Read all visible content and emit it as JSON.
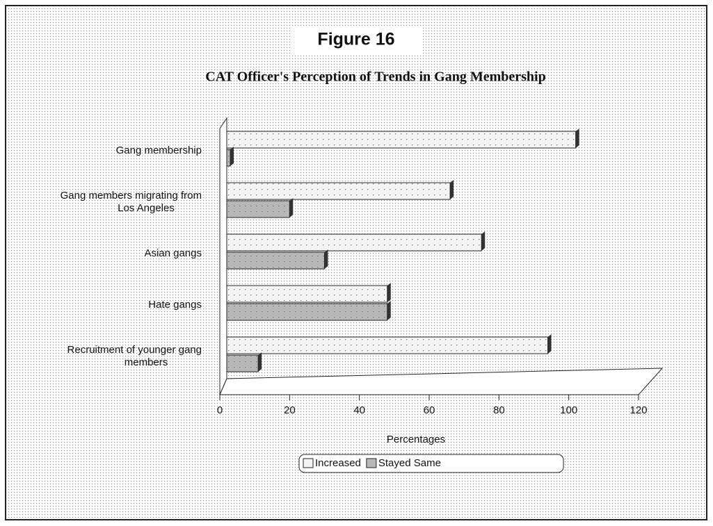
{
  "chart_data": {
    "type": "bar",
    "orientation": "horizontal",
    "title": "Figure 16",
    "subtitle": "CAT Officer's Perception of Trends in Gang Membership",
    "x_label": "Percentages",
    "categories": [
      "Gang membership",
      "Gang members migrating from Los Angeles",
      "Asian gangs",
      "Hate gangs",
      "Recruitment of younger gang members"
    ],
    "series": [
      {
        "name": "Increased",
        "color": "#f4f4f4",
        "values": [
          100,
          64,
          73,
          46,
          92
        ]
      },
      {
        "name": "Stayed Same",
        "color": "#b8b8b8",
        "values": [
          1,
          18,
          28,
          46,
          9
        ]
      }
    ],
    "xlim": [
      0,
      120
    ],
    "xticks": [
      0,
      20,
      40,
      60,
      80,
      100,
      120
    ],
    "legend": "bottom"
  }
}
